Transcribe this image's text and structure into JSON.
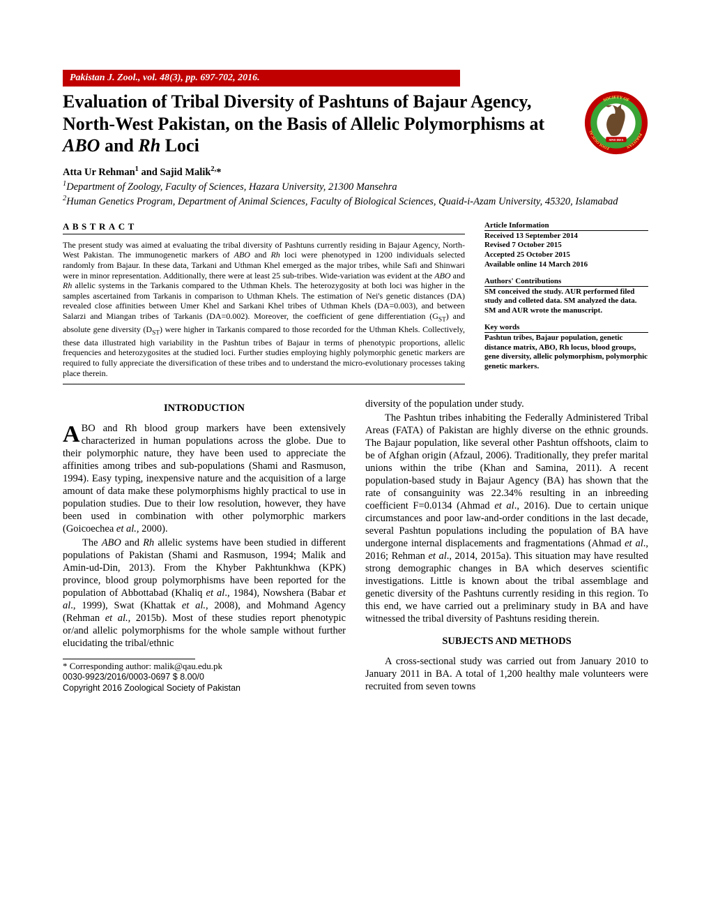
{
  "journal_bar": "Pakistan J. Zool., vol. 48(3), pp. 697-702, 2016.",
  "title_html": "Evaluation of Tribal Diversity of Pashtuns of Bajaur Agency, North-West Pakistan, on the Basis of Allelic Polymorphisms at <span class='ital'>ABO</span> and <span class='ital'>Rh</span> Loci",
  "authors_html": "Atta Ur Rehman<sup>1</sup> and Sajid Malik<sup>2,</sup>*",
  "affil1_html": "<sup>1</sup>Department of Zoology, Faculty of Sciences, Hazara University, 21300 Mansehra",
  "affil2_html": "<sup>2</sup>Human Genetics Program, Department of Animal Sciences, Faculty of Biological Sciences, Quaid-i-Azam University, 45320, Islamabad",
  "abstract_heading": "ABSTRACT",
  "abstract_html": "The present study was aimed at evaluating the tribal diversity of Pashtuns currently residing in Bajaur Agency, North-West Pakistan. The immunogenetic markers of <span class='ital'>ABO</span> and <span class='ital'>Rh</span> loci were phenotyped in 1200 individuals selected randomly from Bajaur. In these data, Tarkani and Uthman Khel emerged as the major tribes, while Safi and Shinwari were in minor representation. Additionally, there were at least 25 sub-tribes. Wide-variation was evident at the <span class='ital'>ABO</span> and <span class='ital'>Rh</span> allelic systems in the Tarkanis compared to the Uthman Khels. The heterozygosity at both loci was higher in the samples ascertained from Tarkanis in comparison to Uthman Khels. The estimation of Nei's genetic distances (DA) revealed close affinities between Umer Khel and Sarkani Khel tribes of Uthman Khels (DA=0.003), and between Salarzi and Miangan tribes of Tarkanis (DA=0.002). Moreover, the coefficient of gene differentiation (G<span class='sub'>ST</span>) and absolute gene diversity (D<span class='sub'>ST</span>) were higher in Tarkanis compared to those recorded for the Uthman Khels. Collectively, these data illustrated high variability in the Pashtun tribes of Bajaur in terms of phenotypic proportions, allelic frequencies and heterozygosites at the studied loci. Further studies employing highly polymorphic genetic markers are required to fully appreciate the diversification of these tribes and to understand the micro-evolutionary processes taking place therein.",
  "info": {
    "article_info_heading": "Article Information",
    "received": "Received 13 September 2014",
    "revised": "Revised 7 October 2015",
    "accepted": "Accepted 25 October 2015",
    "online": "Available online 14 March 2016",
    "contrib_heading": "Authors' Contributions",
    "contrib_text": "SM conceived the study. AUR performed filed study and colleted data. SM analyzed the data. SM and AUR wrote the manuscript.",
    "keywords_heading": "Key words",
    "keywords_text": "Pashtun tribes, Bajaur population, genetic distance matrix, ABO, Rh locus, blood groups, gene diversity, allelic polymorphism, polymorphic genetic markers."
  },
  "intro_heading": "INTRODUCTION",
  "intro_p1_html": "<span class='dropcap'>A</span>BO and Rh blood group markers have been extensively characterized in human populations across the globe. Due to their polymorphic nature, they have been used to appreciate the affinities among tribes and sub-populations (Shami and Rasmuson, 1994). Easy typing, inexpensive nature and the acquisition of a large amount of data make these polymorphisms highly practical to use in population studies. Due to their low resolution, however, they have been used in combination with other polymorphic markers (Goicoechea <span class='ital'>et al.,</span> 2000).",
  "intro_p2_html": "The <span class='ital'>ABO</span> and <span class='ital'>Rh</span> allelic systems have been studied in different populations of Pakistan (Shami and Rasmuson, 1994; Malik and Amin-ud-Din, 2013). From the Khyber Pakhtunkhwa (KPK) province, blood group polymorphisms have been reported for the population of Abbottabad (Khaliq <span class='ital'>et al</span>., 1984), Nowshera (Babar <span class='ital'>et al</span>., 1999), Swat (Khattak <span class='ital'>et al.</span>, 2008), and Mohmand Agency (Rehman <span class='ital'>et al.,</span> 2015b). Most of these studies report phenotypic or/and allelic polymorphisms for the whole sample without further elucidating the tribal/ethnic",
  "col2_top": "diversity of the population under study.",
  "col2_p1_html": "The Pashtun tribes inhabiting the Federally Administered Tribal Areas (FATA) of Pakistan are highly diverse on the ethnic grounds. The Bajaur population, like several other Pashtun offshoots, claim to be of Afghan origin (Afzaul, 2006). Traditionally, they prefer marital unions within the tribe (Khan and Samina, 2011). A recent population-based study in Bajaur Agency (BA) has shown that the rate of consanguinity was 22.34% resulting in an inbreeding coefficient F=0.0134 (Ahmad <span class='ital'>et al</span>., 2016). Due to certain unique circumstances and poor law-and-order conditions in the last decade, several Pashtun populations including the population of BA have undergone internal displacements and fragmentations (Ahmad <span class='ital'>et al</span>., 2016; Rehman <span class='ital'>et al</span>., 2014, 2015a). This situation may have resulted strong demographic changes in BA which deserves scientific investigations. Little is known about the tribal assemblage and genetic diversity of the Pashtuns currently residing in this region. To this end, we have carried out a preliminary study in BA and have witnessed the tribal diversity of Pashtuns residing therein.",
  "methods_heading": "SUBJECTS AND METHODS",
  "methods_p1": "A cross-sectional study was carried out from January 2010 to January 2011 in BA. A total of 1,200 healthy male volunteers were recruited from seven towns",
  "footnote": {
    "corr": "*        Corresponding author: malik@qau.edu.pk",
    "code": "0030-9923/2016/0003-0697 $ 8.00/0",
    "copy": "Copyright 2016 Zoological Society of Pakistan"
  },
  "logo": {
    "outer_color": "#c00000",
    "mid_color": "#3aa335",
    "inner_color": "#ffffff",
    "text_top": "SOCIETY OF",
    "text_left": "ZOOLOGICAL",
    "text_right": "PAKISTAN",
    "banner_text": "SIND IBEX"
  }
}
